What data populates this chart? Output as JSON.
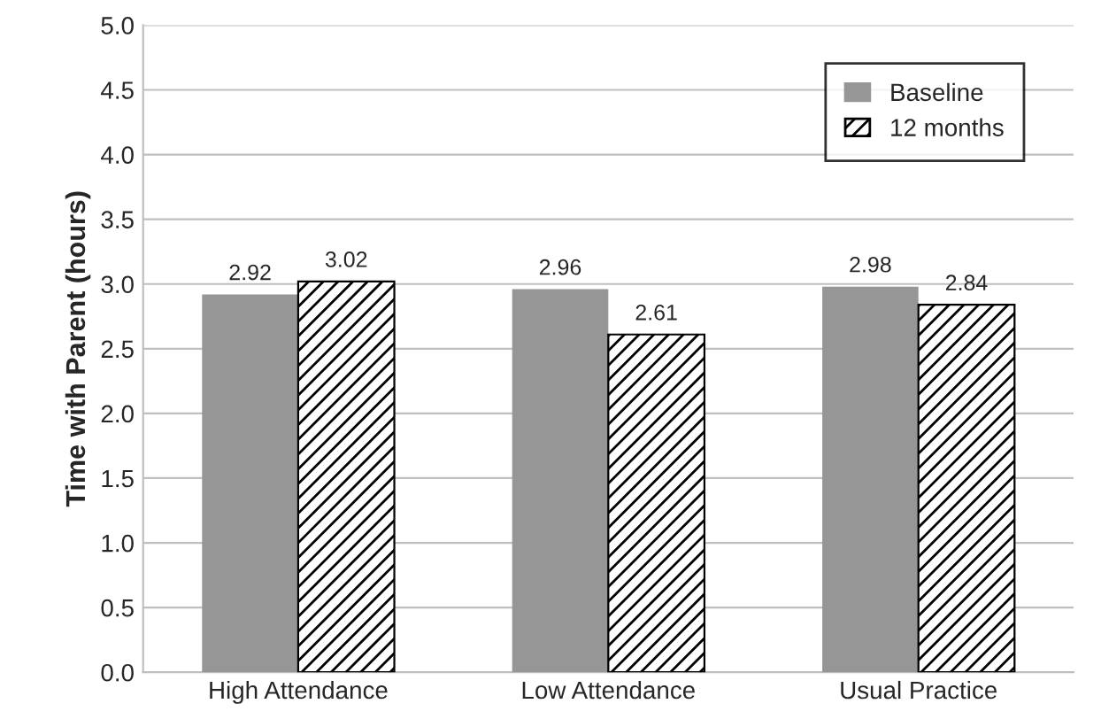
{
  "chart_data": {
    "type": "bar",
    "ylabel": "Time with Parent (hours)",
    "categories": [
      "High Attendance",
      "Low Attendance",
      "Usual Practice"
    ],
    "series": [
      {
        "name": "Baseline",
        "color": "#969696",
        "values": [
          2.92,
          2.96,
          2.98
        ]
      },
      {
        "name": "12 months",
        "color": "#000000",
        "values": [
          3.02,
          2.61,
          2.84
        ]
      }
    ],
    "ylim": [
      0,
      5
    ],
    "yticks": [
      {
        "value": 0,
        "label": "0.0"
      },
      {
        "value": 0.5,
        "label": "0.5"
      },
      {
        "value": 1,
        "label": "1.0"
      },
      {
        "value": 1.5,
        "label": "1.5"
      },
      {
        "value": 2,
        "label": "2.0"
      },
      {
        "value": 2.5,
        "label": "2.5"
      },
      {
        "value": 3,
        "label": "3.0"
      },
      {
        "value": 3.5,
        "label": "3.5"
      },
      {
        "value": 4,
        "label": "4.0"
      },
      {
        "value": 4.5,
        "label": "4.5"
      },
      {
        "value": 5,
        "label": "5.0"
      }
    ],
    "grid": "y",
    "legend": "top right",
    "data_labels": true
  }
}
